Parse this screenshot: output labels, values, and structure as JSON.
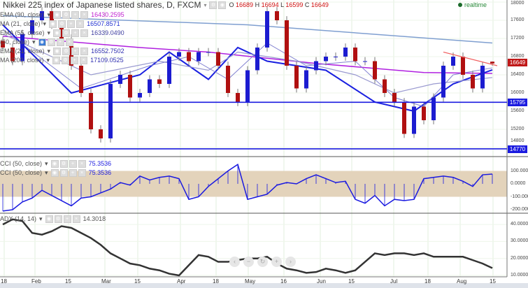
{
  "header": {
    "title": "Nikkei 225 index of Japanese listed shares, D, FXCM",
    "o_label": "O",
    "o": "16689",
    "h_label": "H",
    "h": "16694",
    "l_label": "L",
    "l": "16599",
    "c_label": "C",
    "c": "16649",
    "realtime": "realtime"
  },
  "legend": [
    {
      "label": "EMA (90, close)",
      "value": "16430.2595",
      "color": "#c020d0"
    },
    {
      "label": "MA (21, close)",
      "value": "16507.8571",
      "color": "#2030d0"
    },
    {
      "label": "EMA (55, close)",
      "value": "16339.0490",
      "color": "#4040a0"
    },
    {
      "label": "(50, close)",
      "value": "",
      "color": "#4040a0"
    },
    {
      "label": "EMA (21, close)",
      "value": "16552.7502",
      "color": "#3030b0"
    },
    {
      "label": "MA (200, close)",
      "value": "17109.0525",
      "color": "#3030b0"
    }
  ],
  "cci_legend": [
    {
      "label": "CCI (50, close)",
      "value": "75.3536"
    },
    {
      "label": "CCI (50, close)",
      "value": "75.3536"
    }
  ],
  "adx_legend": {
    "label": "ADX (14, 14)",
    "value": "14.3018"
  },
  "price_axis": [
    "18000",
    "17600",
    "17200",
    "16800",
    "16400",
    "16000",
    "15600",
    "15200",
    "14800"
  ],
  "cci_axis": [
    "100.0000",
    "0.0000",
    "-100.0000",
    "-200.0000"
  ],
  "adx_axis": [
    "40.0000",
    "30.0000",
    "20.0000",
    "10.0000"
  ],
  "date_axis": [
    "18",
    "Feb",
    "15",
    "Mar",
    "15",
    "Apr",
    "18",
    "May",
    "16",
    "Jun",
    "15",
    "Jul",
    "18",
    "Aug",
    "15"
  ],
  "tags": {
    "last": "16649",
    "support1": "15795",
    "support2": "14770"
  },
  "colors": {
    "up": "#1c1cd0",
    "down": "#b01010",
    "ma200": "#7f9fd0",
    "ema90": "#b020e0",
    "ma21": "#1a20e0",
    "ema55": "#9a9ad0",
    "ema21": "#8080d0",
    "cci": "#1a1ae0",
    "band": "#e3d3bb",
    "adx": "#333333",
    "trend": "#f06060",
    "hline": "#1a1ae0"
  },
  "chart_data": [
    {
      "type": "candlestick",
      "ylim": [
        14700,
        18000
      ],
      "closes": [
        17000,
        16700,
        17300,
        17600,
        17800,
        17500,
        17200,
        16600,
        16000,
        15200,
        15000,
        16200,
        16400,
        15900,
        16000,
        16300,
        16200,
        16800,
        16900,
        16700,
        16900,
        16900,
        16600,
        16000,
        15800,
        16500,
        17000,
        17800,
        17600,
        16600,
        16100,
        16500,
        16700,
        16800,
        16800,
        17000,
        16700,
        16700,
        16300,
        16000,
        15800,
        15100,
        15700,
        15400,
        15900,
        16600,
        16800,
        16400,
        16100,
        16600,
        16649
      ],
      "open": 16689,
      "high": 16694,
      "low": 16599,
      "lines": {
        "ma200": [
          [
            0,
            17700
          ],
          [
            25,
            17500
          ],
          [
            50,
            17100
          ]
        ],
        "ema90": [
          [
            0,
            17250
          ],
          [
            14,
            17000
          ],
          [
            21,
            16900
          ],
          [
            32,
            16650
          ],
          [
            43,
            16450
          ],
          [
            50,
            16430
          ]
        ],
        "ma21": [
          [
            0,
            17500
          ],
          [
            7,
            16000
          ],
          [
            14,
            16400
          ],
          [
            17,
            16900
          ],
          [
            21,
            16300
          ],
          [
            24,
            17000
          ],
          [
            27,
            16700
          ],
          [
            33,
            16500
          ],
          [
            38,
            15800
          ],
          [
            42,
            15600
          ],
          [
            46,
            16200
          ],
          [
            50,
            16508
          ]
        ],
        "ema55": [
          [
            0,
            17300
          ],
          [
            9,
            16400
          ],
          [
            16,
            16700
          ],
          [
            21,
            16500
          ],
          [
            24,
            16900
          ],
          [
            30,
            16700
          ],
          [
            36,
            16400
          ],
          [
            40,
            16000
          ],
          [
            44,
            16200
          ],
          [
            50,
            16339
          ]
        ],
        "ema21": [
          [
            0,
            17400
          ],
          [
            8,
            16100
          ],
          [
            15,
            16600
          ],
          [
            19,
            16800
          ],
          [
            23,
            16300
          ],
          [
            27,
            17100
          ],
          [
            31,
            16600
          ],
          [
            36,
            16700
          ],
          [
            40,
            15900
          ],
          [
            43,
            15700
          ],
          [
            46,
            16400
          ],
          [
            50,
            16553
          ]
        ]
      },
      "hlines": [
        15795,
        14770
      ],
      "trendline": [
        [
          45,
          16900
        ],
        [
          50.5,
          16600
        ]
      ]
    },
    {
      "type": "line",
      "name": "CCI (50, close)",
      "ylim": [
        -220,
        180
      ],
      "band": [
        -100,
        100
      ],
      "values": [
        -210,
        -200,
        -140,
        -110,
        -50,
        -90,
        -130,
        -170,
        -110,
        -100,
        -70,
        -40,
        10,
        -10,
        60,
        30,
        50,
        60,
        40,
        -120,
        -100,
        -20,
        40,
        100,
        150,
        -120,
        -100,
        -80,
        -10,
        10,
        0,
        40,
        70,
        40,
        10,
        20,
        -120,
        -150,
        -90,
        -170,
        -120,
        -130,
        -120,
        40,
        50,
        60,
        50,
        20,
        -20,
        70,
        75.3536
      ]
    },
    {
      "type": "line",
      "name": "ADX (14, 14)",
      "ylim": [
        8,
        45
      ],
      "values": [
        40,
        43,
        42,
        35,
        34,
        36,
        39,
        38,
        35,
        32,
        28,
        23,
        20,
        17,
        16,
        14,
        13,
        11,
        10,
        16,
        22,
        21,
        18,
        18,
        19,
        20,
        20,
        21,
        17,
        14,
        13,
        11.5,
        12,
        14,
        13,
        11.5,
        13,
        18,
        23,
        22,
        23,
        23,
        22,
        23,
        21,
        21,
        21,
        21,
        19,
        17,
        14.3018
      ]
    }
  ]
}
